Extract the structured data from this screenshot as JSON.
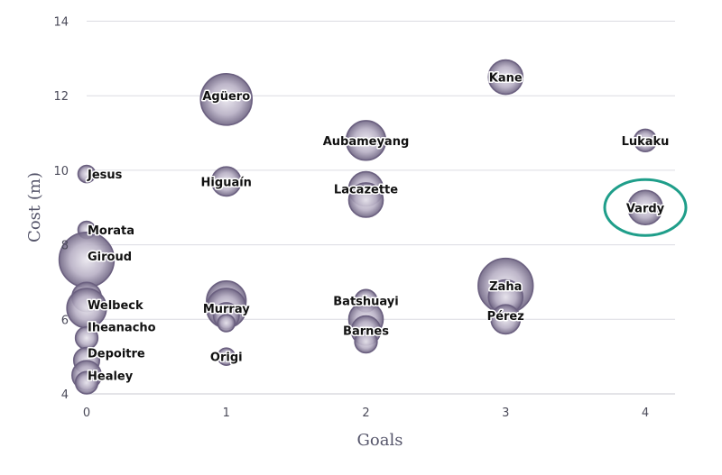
{
  "chart_data": {
    "type": "scatter",
    "title": "",
    "xlabel": "Goals",
    "ylabel": "Cost (m)",
    "xlim": [
      0,
      4.2
    ],
    "ylim": [
      4,
      14
    ],
    "x_ticks": [
      "0",
      "1",
      "2",
      "3",
      "4"
    ],
    "y_ticks": [
      "4",
      "6",
      "8",
      "10",
      "12",
      "14"
    ],
    "grid": "horizontal",
    "bubble_color": "#6b6080",
    "highlight_color": "#1f9e8a",
    "highlighted_point": "Vardy",
    "labels": [
      {
        "text": "Agüero",
        "x": 1,
        "y": 12
      },
      {
        "text": "Kane",
        "x": 3,
        "y": 12.5
      },
      {
        "text": "Aubameyang",
        "x": 2,
        "y": 10.8
      },
      {
        "text": "Lukaku",
        "x": 4,
        "y": 10.8
      },
      {
        "text": "Jesus",
        "x": 0,
        "y": 9.9
      },
      {
        "text": "Higuaín",
        "x": 1,
        "y": 9.7
      },
      {
        "text": "Lacazette",
        "x": 2,
        "y": 9.5
      },
      {
        "text": "Vardy",
        "x": 4,
        "y": 9
      },
      {
        "text": "Morata",
        "x": 0,
        "y": 8.4
      },
      {
        "text": "Giroud",
        "x": 0,
        "y": 7.7
      },
      {
        "text": "Zaha",
        "x": 3,
        "y": 6.9
      },
      {
        "text": "Welbeck",
        "x": 0,
        "y": 6.4
      },
      {
        "text": "Batshuayi",
        "x": 2,
        "y": 6.5
      },
      {
        "text": "Murray",
        "x": 1,
        "y": 6.3
      },
      {
        "text": "Pérez",
        "x": 3,
        "y": 6.1
      },
      {
        "text": "Iheanacho",
        "x": 0,
        "y": 5.8
      },
      {
        "text": "Barnes",
        "x": 2,
        "y": 5.7
      },
      {
        "text": "Depoitre",
        "x": 0,
        "y": 5.1
      },
      {
        "text": "Origi",
        "x": 1,
        "y": 5
      },
      {
        "text": "Healey",
        "x": 0,
        "y": 4.5
      }
    ],
    "bubbles": [
      {
        "x": 1,
        "y": 11.9,
        "size": 3.0
      },
      {
        "x": 3,
        "y": 12.5,
        "size": 2.0
      },
      {
        "x": 2,
        "y": 10.8,
        "size": 2.3
      },
      {
        "x": 4,
        "y": 10.8,
        "size": 1.3
      },
      {
        "x": 0,
        "y": 9.9,
        "size": 1.0
      },
      {
        "x": 1,
        "y": 9.7,
        "size": 1.7
      },
      {
        "x": 2,
        "y": 9.5,
        "size": 2.0
      },
      {
        "x": 2,
        "y": 9.2,
        "size": 2.0
      },
      {
        "x": 4,
        "y": 9.0,
        "size": 2.0
      },
      {
        "x": 0,
        "y": 8.4,
        "size": 1.0
      },
      {
        "x": 0,
        "y": 7.6,
        "size": 3.2
      },
      {
        "x": 0,
        "y": 6.6,
        "size": 1.7
      },
      {
        "x": 0,
        "y": 6.3,
        "size": 2.3
      },
      {
        "x": 0,
        "y": 5.5,
        "size": 1.3
      },
      {
        "x": 0,
        "y": 4.9,
        "size": 1.5
      },
      {
        "x": 0,
        "y": 4.5,
        "size": 1.7
      },
      {
        "x": 0,
        "y": 4.3,
        "size": 1.3
      },
      {
        "x": 1,
        "y": 6.5,
        "size": 2.3
      },
      {
        "x": 1,
        "y": 6.3,
        "size": 2.3
      },
      {
        "x": 1,
        "y": 6.1,
        "size": 1.5
      },
      {
        "x": 1,
        "y": 5.9,
        "size": 1.0
      },
      {
        "x": 1,
        "y": 5.0,
        "size": 1.0
      },
      {
        "x": 2,
        "y": 6.5,
        "size": 1.3
      },
      {
        "x": 2,
        "y": 6.0,
        "size": 2.0
      },
      {
        "x": 2,
        "y": 5.7,
        "size": 1.7
      },
      {
        "x": 2,
        "y": 5.4,
        "size": 1.3
      },
      {
        "x": 3,
        "y": 6.9,
        "size": 3.2
      },
      {
        "x": 3,
        "y": 6.6,
        "size": 2.0
      },
      {
        "x": 3,
        "y": 6.0,
        "size": 1.7
      }
    ]
  }
}
